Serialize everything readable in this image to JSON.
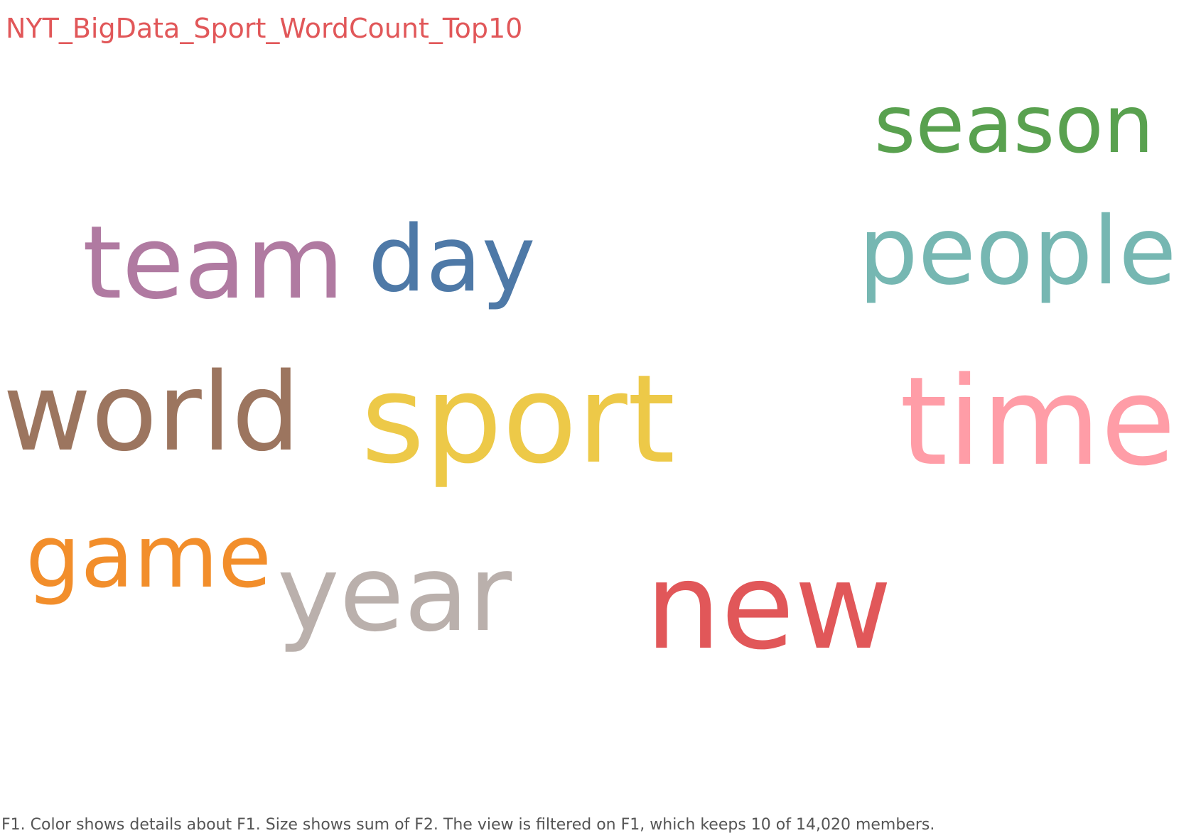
{
  "title": "NYT_BigData_Sport_WordCount_Top10",
  "caption": "F1.  Color shows details about F1.  Size shows sum of F2. The view is filtered on F1, which keeps 10 of 14,020 members.",
  "chart_data": {
    "type": "word-cloud",
    "title": "NYT_BigData_Sport_WordCount_Top10",
    "words": [
      {
        "text": "season",
        "color": "#59a14f"
      },
      {
        "text": "team",
        "color": "#b07aa1"
      },
      {
        "text": "day",
        "color": "#4e79a7"
      },
      {
        "text": "people",
        "color": "#76b7b2"
      },
      {
        "text": "world",
        "color": "#9c755f"
      },
      {
        "text": "sport",
        "color": "#edc948"
      },
      {
        "text": "time",
        "color": "#ff9da7"
      },
      {
        "text": "game",
        "color": "#f28e2b"
      },
      {
        "text": "year",
        "color": "#bab0ac"
      },
      {
        "text": "new",
        "color": "#e15759"
      }
    ]
  }
}
